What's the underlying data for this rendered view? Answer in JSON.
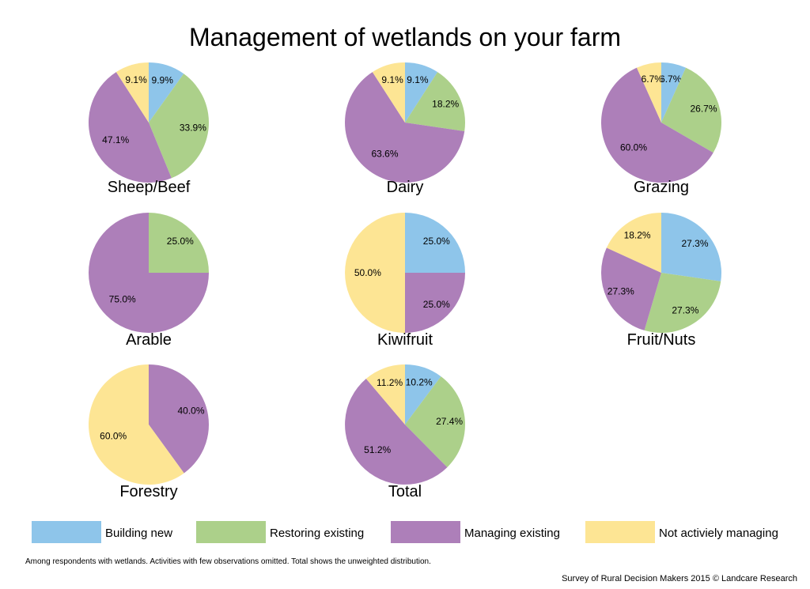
{
  "colors": {
    "Building new": "#8ec5ea",
    "Restoring existing": "#acd08a",
    "Managing existing": "#ad7fb9",
    "Not activiely managing": "#fde594"
  },
  "chart_data": {
    "type": "pie",
    "title": "Management of wetlands on your farm",
    "legend_position": "bottom",
    "categories": [
      "Building new",
      "Restoring existing",
      "Managing existing",
      "Not activiely managing"
    ],
    "pies": [
      {
        "name": "Sheep/Beef",
        "values": [
          9.9,
          33.9,
          47.1,
          9.1
        ],
        "labels": [
          "9.9%",
          "33.9%",
          "47.1%",
          "9.1%"
        ]
      },
      {
        "name": "Dairy",
        "values": [
          9.1,
          18.2,
          63.6,
          9.1
        ],
        "labels": [
          "9.1%",
          "18.2%",
          "63.6%",
          "9.1%"
        ]
      },
      {
        "name": "Grazing",
        "values": [
          6.7,
          26.7,
          60.0,
          6.7
        ],
        "labels": [
          "6.7%",
          "26.7%",
          "60.0%",
          "6.7%"
        ]
      },
      {
        "name": "Arable",
        "values": [
          0,
          25.0,
          75.0,
          0
        ],
        "labels": [
          "",
          "25.0%",
          "75.0%",
          ""
        ]
      },
      {
        "name": "Kiwifruit",
        "values": [
          25.0,
          0,
          25.0,
          50.0
        ],
        "labels": [
          "25.0%",
          "",
          "25.0%",
          "50.0%"
        ]
      },
      {
        "name": "Fruit/Nuts",
        "values": [
          27.3,
          27.3,
          27.3,
          18.2
        ],
        "labels": [
          "27.3%",
          "27.3%",
          "27.3%",
          "18.2%"
        ]
      },
      {
        "name": "Forestry",
        "values": [
          0,
          0,
          40.0,
          60.0
        ],
        "labels": [
          "",
          "",
          "40.0%",
          "60.0%"
        ]
      },
      {
        "name": "Total",
        "values": [
          10.2,
          27.4,
          51.2,
          11.2
        ],
        "labels": [
          "10.2%",
          "27.4%",
          "51.2%",
          "11.2%"
        ]
      }
    ]
  },
  "footnote": "Among respondents with wetlands. Activities with few observations omitted. Total shows the unweighted distribution.",
  "source": "Survey of Rural Decision Makers 2015 © Landcare Research"
}
